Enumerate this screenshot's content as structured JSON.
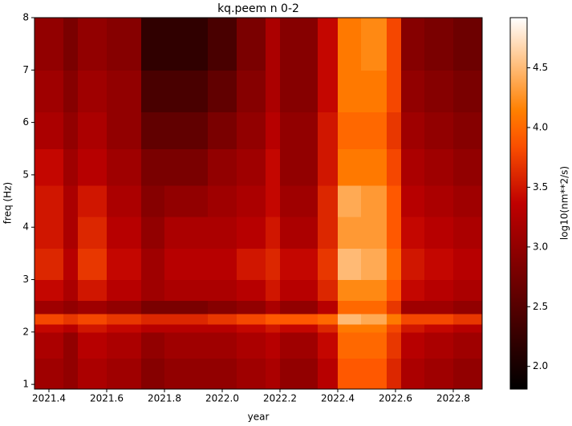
{
  "chart_data": {
    "type": "heatmap",
    "title": "kq.peem n 0-2",
    "x_label": "year",
    "y_label": "freq (Hz)",
    "colorbar_label": "log10(nm**2/s)",
    "colormap": "gist_heat",
    "x_edges": [
      2021.35,
      2021.45,
      2021.5,
      2021.6,
      2021.72,
      2021.8,
      2021.95,
      2022.05,
      2022.15,
      2022.2,
      2022.33,
      2022.4,
      2022.48,
      2022.57,
      2022.62,
      2022.7,
      2022.8,
      2022.9
    ],
    "y_edges": [
      0.91,
      1.5,
      2.0,
      2.15,
      2.35,
      2.6,
      3.0,
      3.6,
      4.2,
      4.8,
      5.5,
      6.2,
      7.0,
      8.0
    ],
    "values": [
      [
        3.1,
        3.0,
        3.2,
        3.1,
        2.9,
        3.0,
        3.0,
        3.1,
        3.2,
        3.0,
        3.3,
        3.9,
        3.9,
        3.6,
        3.2,
        3.1,
        3.0
      ],
      [
        3.2,
        3.0,
        3.3,
        3.2,
        3.0,
        3.1,
        3.1,
        3.2,
        3.3,
        3.1,
        3.4,
        4.0,
        4.0,
        3.7,
        3.3,
        3.2,
        3.1
      ],
      [
        3.4,
        3.3,
        3.5,
        3.4,
        3.3,
        3.3,
        3.3,
        3.4,
        3.5,
        3.4,
        3.6,
        4.1,
        4.1,
        3.8,
        3.5,
        3.4,
        3.3
      ],
      [
        3.8,
        3.7,
        3.8,
        3.7,
        3.6,
        3.6,
        3.7,
        3.8,
        3.9,
        3.9,
        4.0,
        4.5,
        4.4,
        4.1,
        3.8,
        3.8,
        3.7
      ],
      [
        3.1,
        3.0,
        3.1,
        3.0,
        2.8,
        2.8,
        2.9,
        3.0,
        3.2,
        3.0,
        3.3,
        4.0,
        4.0,
        3.7,
        3.1,
        3.1,
        3.0
      ],
      [
        3.4,
        3.2,
        3.5,
        3.3,
        3.1,
        3.2,
        3.2,
        3.3,
        3.5,
        3.3,
        3.6,
        4.2,
        4.2,
        3.9,
        3.4,
        3.3,
        3.2
      ],
      [
        3.6,
        3.3,
        3.7,
        3.4,
        3.1,
        3.3,
        3.3,
        3.5,
        3.6,
        3.4,
        3.7,
        4.5,
        4.4,
        4.0,
        3.5,
        3.4,
        3.3
      ],
      [
        3.5,
        3.2,
        3.6,
        3.3,
        3.0,
        3.2,
        3.2,
        3.3,
        3.5,
        3.2,
        3.6,
        4.3,
        4.3,
        3.9,
        3.4,
        3.3,
        3.2
      ],
      [
        3.5,
        3.2,
        3.5,
        3.2,
        2.9,
        3.0,
        3.1,
        3.2,
        3.4,
        3.1,
        3.6,
        4.4,
        4.3,
        3.9,
        3.3,
        3.2,
        3.1
      ],
      [
        3.4,
        3.1,
        3.3,
        3.1,
        2.8,
        2.8,
        3.0,
        3.1,
        3.4,
        3.0,
        3.5,
        4.1,
        4.1,
        3.8,
        3.2,
        3.1,
        3.0
      ],
      [
        3.2,
        3.0,
        3.2,
        3.0,
        2.6,
        2.6,
        2.8,
        3.0,
        3.3,
        3.0,
        3.5,
        4.0,
        4.0,
        3.7,
        3.1,
        3.0,
        2.9
      ],
      [
        3.1,
        2.9,
        3.1,
        3.0,
        2.4,
        2.4,
        2.6,
        2.9,
        3.2,
        2.9,
        3.4,
        4.1,
        4.1,
        3.8,
        3.0,
        2.9,
        2.8
      ],
      [
        3.0,
        2.8,
        3.0,
        2.9,
        2.2,
        2.2,
        2.4,
        2.8,
        3.2,
        2.9,
        3.4,
        4.1,
        4.2,
        3.8,
        2.9,
        2.8,
        2.7
      ]
    ],
    "xlim": [
      2021.35,
      2022.9
    ],
    "xticks": [
      2021.4,
      2021.6,
      2021.8,
      {
        "value": 2022,
        "label": "2022.0"
      },
      2022.2,
      2022.4,
      2022.6,
      2022.8
    ],
    "ylim": [
      0.91,
      8
    ],
    "yticks": [
      1,
      2,
      3,
      4,
      5,
      6,
      7,
      8
    ],
    "clim": [
      1.81,
      4.92
    ],
    "cticks": [
      {
        "value": 2,
        "label": "2.0"
      },
      2.5,
      {
        "value": 3,
        "label": "3.0"
      },
      3.5,
      {
        "value": 4,
        "label": "4.0"
      },
      4.5
    ]
  }
}
